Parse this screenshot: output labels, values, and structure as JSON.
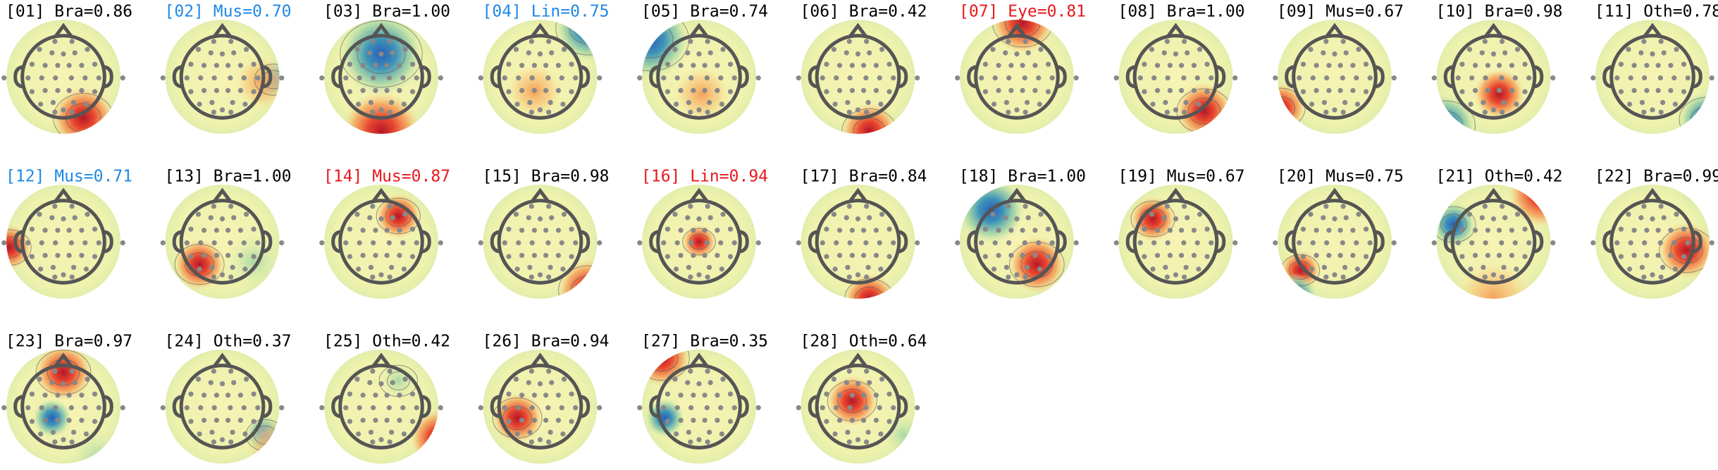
{
  "components": [
    {
      "label": "[01] Bra=0.86",
      "color": "#000000"
    },
    {
      "label": "[02] Mus=0.70",
      "color": "#1e88e5"
    },
    {
      "label": "[03] Bra=1.00",
      "color": "#000000"
    },
    {
      "label": "[04] Lin=0.75",
      "color": "#1e88e5"
    },
    {
      "label": "[05] Bra=0.74",
      "color": "#000000"
    },
    {
      "label": "[06] Bra=0.42",
      "color": "#000000"
    },
    {
      "label": "[07] Eye=0.81",
      "color": "#e8181d"
    },
    {
      "label": "[08] Bra=1.00",
      "color": "#000000"
    },
    {
      "label": "[09] Mus=0.67",
      "color": "#000000"
    },
    {
      "label": "[10] Bra=0.98",
      "color": "#000000"
    },
    {
      "label": "[11] Oth=0.78",
      "color": "#000000"
    },
    {
      "label": "[12] Mus=0.71",
      "color": "#1e88e5"
    },
    {
      "label": "[13] Bra=1.00",
      "color": "#000000"
    },
    {
      "label": "[14] Mus=0.87",
      "color": "#e8181d"
    },
    {
      "label": "[15] Bra=0.98",
      "color": "#000000"
    },
    {
      "label": "[16] Lin=0.94",
      "color": "#e8181d"
    },
    {
      "label": "[17] Bra=0.84",
      "color": "#000000"
    },
    {
      "label": "[18] Bra=1.00",
      "color": "#000000"
    },
    {
      "label": "[19] Mus=0.67",
      "color": "#000000"
    },
    {
      "label": "[20] Mus=0.75",
      "color": "#000000"
    },
    {
      "label": "[21] Oth=0.42",
      "color": "#000000"
    },
    {
      "label": "[22] Bra=0.99",
      "color": "#000000"
    },
    {
      "label": "[23] Bra=0.97",
      "color": "#000000"
    },
    {
      "label": "[24] Oth=0.37",
      "color": "#000000"
    },
    {
      "label": "[25] Oth=0.42",
      "color": "#000000"
    },
    {
      "label": "[26] Bra=0.94",
      "color": "#000000"
    },
    {
      "label": "[27] Bra=0.35",
      "color": "#000000"
    },
    {
      "label": "[28] Oth=0.64",
      "color": "#000000"
    }
  ]
}
